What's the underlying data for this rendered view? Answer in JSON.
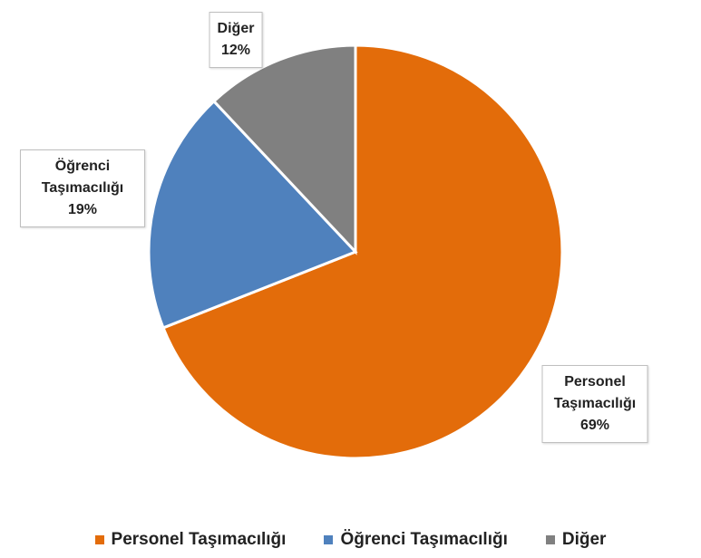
{
  "chart_data": {
    "type": "pie",
    "categories": [
      "Personel Taşımacılığı",
      "Öğrenci Taşımacılığı",
      "Diğer"
    ],
    "values": [
      69,
      19,
      12
    ],
    "value_labels": [
      "69%",
      "19%",
      "12%"
    ],
    "colors": [
      "#e36c0a",
      "#4f81bd",
      "#808080"
    ],
    "legend": "bottom"
  }
}
